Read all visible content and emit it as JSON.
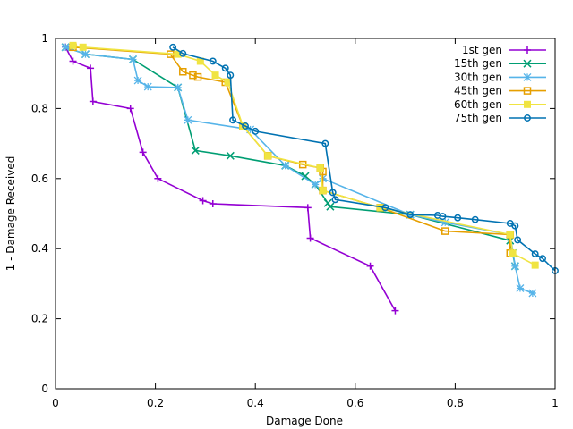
{
  "chart_data": {
    "type": "line",
    "title": "",
    "xlabel": "Damage Done",
    "ylabel": "1 - Damage Received",
    "xlim": [
      0,
      1
    ],
    "ylim": [
      0,
      1
    ],
    "xticks": [
      "0",
      "0.2",
      "0.4",
      "0.6",
      "0.8",
      "1"
    ],
    "yticks": [
      "0",
      "0.2",
      "0.4",
      "0.6",
      "0.8",
      "1"
    ],
    "legend_position": "top-right",
    "series": [
      {
        "name": "1st gen",
        "color": "#9400d3",
        "marker": "plus",
        "points": [
          [
            0.02,
            0.975
          ],
          [
            0.035,
            0.935
          ],
          [
            0.07,
            0.915
          ],
          [
            0.075,
            0.82
          ],
          [
            0.15,
            0.8
          ],
          [
            0.175,
            0.675
          ],
          [
            0.205,
            0.6
          ],
          [
            0.295,
            0.537
          ],
          [
            0.315,
            0.528
          ],
          [
            0.505,
            0.517
          ],
          [
            0.51,
            0.43
          ],
          [
            0.63,
            0.35
          ],
          [
            0.68,
            0.223
          ]
        ]
      },
      {
        "name": "15th gen",
        "color": "#009e73",
        "marker": "x",
        "points": [
          [
            0.02,
            0.975
          ],
          [
            0.06,
            0.955
          ],
          [
            0.155,
            0.94
          ],
          [
            0.245,
            0.86
          ],
          [
            0.28,
            0.68
          ],
          [
            0.35,
            0.665
          ],
          [
            0.46,
            0.637
          ],
          [
            0.5,
            0.607
          ],
          [
            0.52,
            0.583
          ],
          [
            0.545,
            0.53
          ],
          [
            0.55,
            0.52
          ],
          [
            0.71,
            0.497
          ],
          [
            0.91,
            0.423
          ],
          [
            0.915,
            0.387
          ],
          [
            0.92,
            0.35
          ]
        ]
      },
      {
        "name": "30th gen",
        "color": "#56b4e9",
        "marker": "star",
        "points": [
          [
            0.02,
            0.975
          ],
          [
            0.06,
            0.955
          ],
          [
            0.155,
            0.94
          ],
          [
            0.165,
            0.88
          ],
          [
            0.185,
            0.862
          ],
          [
            0.245,
            0.86
          ],
          [
            0.265,
            0.767
          ],
          [
            0.39,
            0.74
          ],
          [
            0.46,
            0.637
          ],
          [
            0.52,
            0.583
          ],
          [
            0.535,
            0.6
          ],
          [
            0.71,
            0.497
          ],
          [
            0.78,
            0.475
          ],
          [
            0.91,
            0.44
          ],
          [
            0.92,
            0.35
          ],
          [
            0.93,
            0.287
          ],
          [
            0.955,
            0.273
          ]
        ]
      },
      {
        "name": "45th gen",
        "color": "#e69f00",
        "marker": "square-open",
        "points": [
          [
            0.035,
            0.975
          ],
          [
            0.23,
            0.955
          ],
          [
            0.255,
            0.905
          ],
          [
            0.275,
            0.895
          ],
          [
            0.285,
            0.89
          ],
          [
            0.34,
            0.875
          ],
          [
            0.375,
            0.75
          ],
          [
            0.425,
            0.665
          ],
          [
            0.495,
            0.64
          ],
          [
            0.53,
            0.63
          ],
          [
            0.535,
            0.62
          ],
          [
            0.535,
            0.566
          ],
          [
            0.65,
            0.517
          ],
          [
            0.78,
            0.45
          ],
          [
            0.91,
            0.44
          ],
          [
            0.91,
            0.387
          ]
        ]
      },
      {
        "name": "60th gen",
        "color": "#f0e442",
        "marker": "square-filled",
        "points": [
          [
            0.035,
            0.98
          ],
          [
            0.055,
            0.975
          ],
          [
            0.245,
            0.955
          ],
          [
            0.29,
            0.935
          ],
          [
            0.32,
            0.895
          ],
          [
            0.345,
            0.875
          ],
          [
            0.375,
            0.75
          ],
          [
            0.425,
            0.665
          ],
          [
            0.53,
            0.63
          ],
          [
            0.535,
            0.566
          ],
          [
            0.65,
            0.517
          ],
          [
            0.91,
            0.44
          ],
          [
            0.915,
            0.387
          ],
          [
            0.96,
            0.353
          ]
        ]
      },
      {
        "name": "75th gen",
        "color": "#0072b2",
        "marker": "circle",
        "points": [
          [
            0.235,
            0.975
          ],
          [
            0.255,
            0.957
          ],
          [
            0.315,
            0.935
          ],
          [
            0.34,
            0.915
          ],
          [
            0.35,
            0.895
          ],
          [
            0.355,
            0.767
          ],
          [
            0.38,
            0.75
          ],
          [
            0.4,
            0.735
          ],
          [
            0.54,
            0.7
          ],
          [
            0.555,
            0.56
          ],
          [
            0.56,
            0.54
          ],
          [
            0.66,
            0.517
          ],
          [
            0.71,
            0.497
          ],
          [
            0.765,
            0.495
          ],
          [
            0.775,
            0.492
          ],
          [
            0.805,
            0.488
          ],
          [
            0.84,
            0.483
          ],
          [
            0.91,
            0.472
          ],
          [
            0.92,
            0.465
          ],
          [
            0.925,
            0.425
          ],
          [
            0.96,
            0.385
          ],
          [
            0.975,
            0.372
          ],
          [
            1.0,
            0.337
          ]
        ]
      }
    ]
  }
}
